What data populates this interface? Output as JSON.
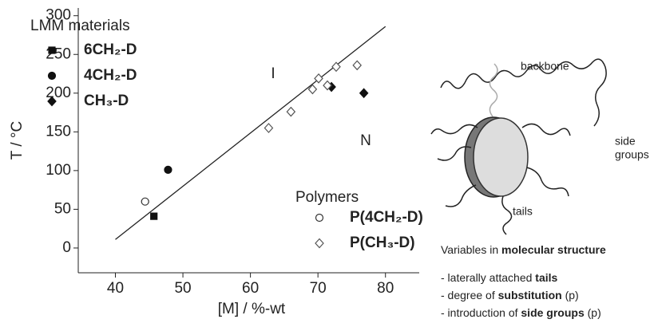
{
  "chart_data": {
    "type": "scatter",
    "xlabel": "[M] / %-wt",
    "ylabel": "T / °C",
    "xlim": [
      34.5,
      85
    ],
    "ylim": [
      -32,
      310
    ],
    "xticks": [
      40,
      50,
      60,
      70,
      80
    ],
    "yticks": [
      0,
      50,
      100,
      150,
      200,
      250,
      300
    ],
    "legend_titles": [
      "LMM materials",
      "Polymers"
    ],
    "series": [
      {
        "name": "6CH₂-D",
        "group": 0,
        "marker": "square",
        "filled": true,
        "color": "#111111",
        "x": [
          45.7
        ],
        "values": [
          41
        ]
      },
      {
        "name": "4CH₂-D",
        "group": 0,
        "marker": "circle",
        "filled": true,
        "color": "#111111",
        "x": [
          47.8
        ],
        "values": [
          101
        ]
      },
      {
        "name": "CH₃-D",
        "group": 0,
        "marker": "diamond",
        "filled": true,
        "color": "#111111",
        "x": [
          72.0,
          76.8
        ],
        "values": [
          208,
          200
        ]
      },
      {
        "name": "P(4CH₂-D)",
        "group": 1,
        "marker": "circle",
        "filled": false,
        "color": "#333333",
        "x": [
          44.4
        ],
        "values": [
          60
        ]
      },
      {
        "name": "P(CH₃-D)",
        "group": 1,
        "marker": "diamond",
        "filled": false,
        "color": "#555555",
        "x": [
          62.7,
          66.0,
          69.2,
          70.1,
          71.4,
          72.7,
          75.8
        ],
        "values": [
          155,
          176,
          205,
          219,
          210,
          234,
          236
        ]
      }
    ],
    "fit_line": {
      "x": [
        40,
        80
      ],
      "y": [
        11,
        286
      ]
    },
    "region_labels": [
      "I",
      "N"
    ]
  },
  "diagram": {
    "backbone": "backbone",
    "side_groups": [
      "side",
      "groups"
    ],
    "tails": "tails",
    "heading": [
      "Variables in ",
      "molecular structure"
    ],
    "items": [
      [
        "- laterally attached ",
        "tails"
      ],
      [
        "- degree of ",
        "substitution",
        " (p)"
      ],
      [
        "- introduction of ",
        "side groups",
        " (p)"
      ]
    ]
  }
}
